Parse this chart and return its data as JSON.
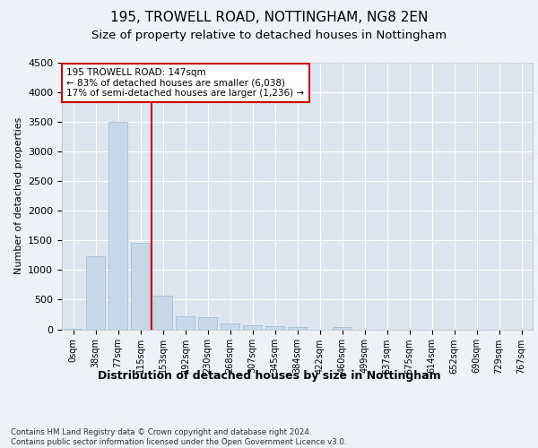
{
  "title1": "195, TROWELL ROAD, NOTTINGHAM, NG8 2EN",
  "title2": "Size of property relative to detached houses in Nottingham",
  "xlabel": "Distribution of detached houses by size in Nottingham",
  "ylabel": "Number of detached properties",
  "bar_labels": [
    "0sqm",
    "38sqm",
    "77sqm",
    "115sqm",
    "153sqm",
    "192sqm",
    "230sqm",
    "268sqm",
    "307sqm",
    "345sqm",
    "384sqm",
    "422sqm",
    "460sqm",
    "499sqm",
    "537sqm",
    "575sqm",
    "614sqm",
    "652sqm",
    "690sqm",
    "729sqm",
    "767sqm"
  ],
  "bar_values": [
    10,
    1230,
    3500,
    1460,
    570,
    215,
    210,
    100,
    70,
    55,
    35,
    0,
    45,
    0,
    0,
    0,
    0,
    0,
    0,
    0,
    0
  ],
  "bar_color": "#c8d8e8",
  "bar_edge_color": "#a0b8cc",
  "vline_color": "#cc0000",
  "annotation_text": "195 TROWELL ROAD: 147sqm\n← 83% of detached houses are smaller (6,038)\n17% of semi-detached houses are larger (1,236) →",
  "annotation_box_color": "#cc0000",
  "ylim": [
    0,
    4500
  ],
  "yticks": [
    0,
    500,
    1000,
    1500,
    2000,
    2500,
    3000,
    3500,
    4000,
    4500
  ],
  "footnote": "Contains HM Land Registry data © Crown copyright and database right 2024.\nContains public sector information licensed under the Open Government Licence v3.0.",
  "background_color": "#eef2f7",
  "plot_bg_color": "#dce6f0",
  "grid_color": "#ffffff",
  "title1_fontsize": 11,
  "title2_fontsize": 9.5
}
